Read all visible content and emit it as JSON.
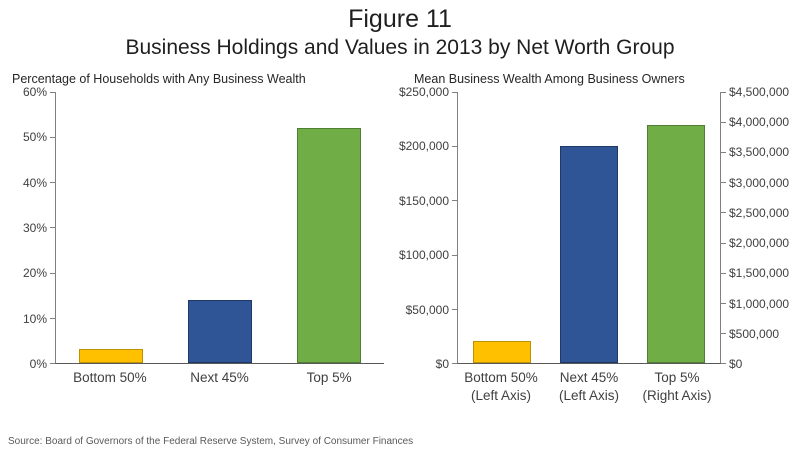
{
  "figure": {
    "title": "Figure 11",
    "subtitle": "Business Holdings and Values in 2013 by Net Worth Group",
    "source": "Source: Board of Governors of the Federal Reserve System, Survey of Consumer Finances"
  },
  "chart_data": [
    {
      "type": "bar",
      "title": "Percentage of Households with Any Business Wealth",
      "categories": [
        "Bottom 50%",
        "Next 45%",
        "Top 5%"
      ],
      "values": [
        3,
        14,
        52
      ],
      "unit": "percent",
      "ylim": [
        0,
        60
      ],
      "yticks": [
        "60%",
        "50%",
        "40%",
        "30%",
        "20%",
        "10%",
        "0%"
      ],
      "bar_colors": [
        "#FFC000",
        "#2F5597",
        "#70AD47"
      ],
      "bar_border_colors": [
        "#BF9000",
        "#1F3864",
        "#507E32"
      ],
      "gridlines": false,
      "legend": "none"
    },
    {
      "type": "bar",
      "title": "Mean Business Wealth Among Business Owners",
      "categories": [
        "Bottom 50%",
        "Next 45%",
        "Top 5%"
      ],
      "category_axis_notes": [
        "(Left Axis)",
        "(Left Axis)",
        "(Right Axis)"
      ],
      "values": [
        20000,
        200000,
        3950000
      ],
      "bar_axes": [
        "left",
        "left",
        "right"
      ],
      "unit": "USD",
      "left_axis": {
        "ylim": [
          0,
          250000
        ],
        "ticks": [
          "$250,000",
          "$200,000",
          "$150,000",
          "$100,000",
          "$50,000",
          "$0"
        ]
      },
      "right_axis": {
        "ylim": [
          0,
          4500000
        ],
        "ticks": [
          "$4,500,000",
          "$4,000,000",
          "$3,500,000",
          "$3,000,000",
          "$2,500,000",
          "$2,000,000",
          "$1,500,000",
          "$1,000,000",
          "$500,000",
          "$0"
        ]
      },
      "bar_colors": [
        "#FFC000",
        "#2F5597",
        "#70AD47"
      ],
      "bar_border_colors": [
        "#BF9000",
        "#1F3864",
        "#507E32"
      ],
      "gridlines": false,
      "legend": "none"
    }
  ]
}
